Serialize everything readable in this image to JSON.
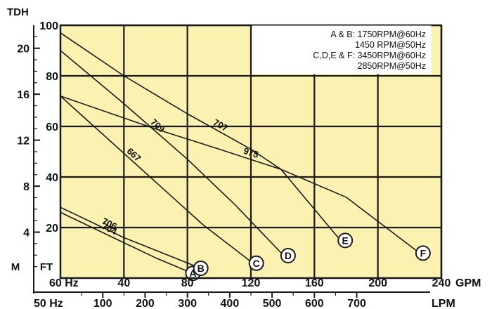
{
  "chart_data": {
    "type": "line",
    "colors": {
      "plot_background": "#fbf2b2",
      "lines": "#1a1a1a",
      "grid": "#1a1a1a"
    },
    "grid": true,
    "axis_titles": {
      "left_outer_top": "TDH",
      "left_outer_unit": "M",
      "left_inner_unit": "FT"
    },
    "axes": {
      "x_gpm": {
        "unit_label": "GPM",
        "freq_label": "60 Hz",
        "range": [
          0,
          240
        ],
        "ticks": [
          40,
          80,
          120,
          160,
          200,
          240
        ],
        "tick_labels": [
          "40",
          "80",
          "120",
          "160",
          "200",
          "240"
        ]
      },
      "x_lpm": {
        "unit_label": "LPM",
        "freq_label": "50 Hz",
        "range": [
          0,
          900
        ],
        "ticks": [
          100,
          200,
          300,
          400,
          500,
          600,
          700
        ],
        "tick_labels": [
          "100",
          "200",
          "300",
          "400",
          "500",
          "600",
          "700"
        ]
      },
      "y_ft": {
        "range": [
          0,
          100
        ],
        "ticks": [
          20,
          40,
          60,
          80,
          100
        ],
        "tick_labels": [
          "20",
          "40",
          "60",
          "80",
          "100"
        ]
      },
      "y_m": {
        "range": [
          0,
          22
        ],
        "ticks": [
          4,
          8,
          12,
          16,
          20
        ],
        "tick_labels": [
          "4",
          "8",
          "12",
          "16",
          "20"
        ]
      }
    },
    "legend": {
      "position": "top-right",
      "lines": [
        "A & B:  1750RPM@60Hz",
        "1450 RPM@50Hz",
        "C,D,E & F:  3450RPM@60Hz",
        "2850RPM@50Hz"
      ]
    },
    "series": [
      {
        "name": "704",
        "endpoint": "A",
        "x": [
          0,
          20,
          40,
          60,
          79
        ],
        "y": [
          26,
          20,
          14,
          8,
          3
        ]
      },
      {
        "name": "706",
        "endpoint": "B",
        "x": [
          0,
          20,
          40,
          60,
          84
        ],
        "y": [
          28,
          22,
          16,
          11,
          5
        ]
      },
      {
        "name": "667",
        "endpoint": "C",
        "x": [
          0,
          30,
          60,
          90,
          119
        ],
        "y": [
          72,
          55,
          38,
          21,
          7
        ]
      },
      {
        "name": "709",
        "endpoint": "D",
        "x": [
          0,
          40,
          80,
          110,
          139
        ],
        "y": [
          90,
          69,
          47,
          29,
          10
        ]
      },
      {
        "name": "707",
        "endpoint": "E",
        "x": [
          0,
          40,
          80,
          120,
          139,
          175
        ],
        "y": [
          97,
          80,
          65,
          51,
          43,
          16
        ]
      },
      {
        "name": "975",
        "endpoint": "F",
        "x": [
          0,
          60,
          100,
          139,
          180,
          224
        ],
        "y": [
          72,
          59,
          51,
          43,
          32,
          11
        ]
      }
    ]
  }
}
